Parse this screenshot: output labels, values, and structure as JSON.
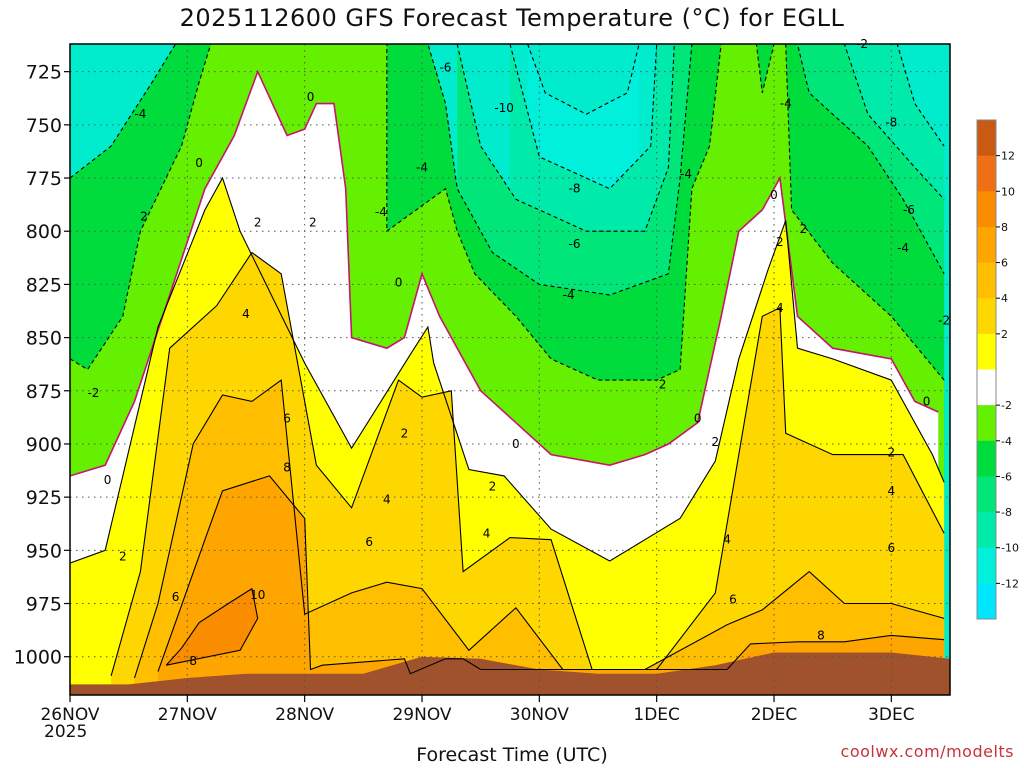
{
  "chart_data": {
    "type": "heatmap",
    "title": "2025112600 GFS Forecast Temperature (°C) for EGLL",
    "xlabel": "Forecast Time (UTC)",
    "credit": "coolwx.com/modelts",
    "x_year": "2025",
    "x_ticks": [
      "26NOV",
      "27NOV",
      "28NOV",
      "29NOV",
      "30NOV",
      "1DEC",
      "2DEC",
      "3DEC"
    ],
    "x_range_days": [
      0,
      7.5
    ],
    "y_ticks": [
      725,
      750,
      775,
      800,
      825,
      850,
      875,
      900,
      925,
      950,
      975,
      1000
    ],
    "y_range_hPa": [
      712,
      1018
    ],
    "y_axis_orientation": "pressure increasing downward",
    "grid": true,
    "colorbar": {
      "position": "right",
      "labels": [
        "12",
        "10",
        "8",
        "6",
        "4",
        "2",
        "-2",
        "-4",
        "-6",
        "-8",
        "-10",
        "-12"
      ],
      "bins": [
        {
          "from": 12,
          "to": 14,
          "color": "#F06E14"
        },
        {
          "from": 10,
          "to": 12,
          "color": "#FA8C00"
        },
        {
          "from": 8,
          "to": 10,
          "color": "#FFA500"
        },
        {
          "from": 6,
          "to": 8,
          "color": "#FFBE00"
        },
        {
          "from": 4,
          "to": 6,
          "color": "#FFD700"
        },
        {
          "from": 2,
          "to": 4,
          "color": "#FFFF00"
        },
        {
          "from": -2,
          "to": 2,
          "color": "#FFFFFF"
        },
        {
          "from": -4,
          "to": -2,
          "color": "#64F000"
        },
        {
          "from": -6,
          "to": -4,
          "color": "#00DC3C"
        },
        {
          "from": -8,
          "to": -6,
          "color": "#00E678"
        },
        {
          "from": -10,
          "to": -8,
          "color": "#00EBAA"
        },
        {
          "from": -12,
          "to": -10,
          "color": "#00F0DC"
        },
        {
          "from": -14,
          "to": -12,
          "color": "#00E6FF"
        }
      ],
      "top_color": "#C85A14"
    },
    "terrain_color": "#A0522D",
    "zero_line_color": "#C8146E",
    "surface_pressure": {
      "x": [
        0,
        0.5,
        1.0,
        1.5,
        2.0,
        2.5,
        3.0,
        3.5,
        4.0,
        4.5,
        5.0,
        5.5,
        6.0,
        6.5,
        7.0,
        7.5
      ],
      "p": [
        1013,
        1013,
        1010,
        1008,
        1008,
        1008,
        1000,
        1001,
        1006,
        1008,
        1008,
        1004,
        998,
        998,
        998,
        1001
      ]
    },
    "isotherms": {
      "10": [
        [
          0.82,
          1004
        ],
        [
          1.45,
          997
        ],
        [
          1.6,
          982
        ],
        [
          1.55,
          968
        ],
        [
          1.35,
          975
        ],
        [
          1.1,
          984
        ],
        [
          0.95,
          996
        ],
        [
          0.82,
          1004
        ]
      ],
      "8": [
        [
          0.75,
          1007
        ],
        [
          1.15,
          945
        ],
        [
          1.3,
          922
        ],
        [
          1.7,
          915
        ],
        [
          2.0,
          935
        ],
        [
          2.05,
          1006
        ],
        [
          2.15,
          1004
        ],
        [
          2.85,
          1001
        ],
        [
          2.9,
          1008
        ],
        [
          3.2,
          1001
        ],
        [
          3.35,
          1001
        ],
        [
          3.5,
          1006
        ],
        [
          5.6,
          1006
        ],
        [
          5.8,
          994
        ],
        [
          6.2,
          993
        ],
        [
          6.6,
          993
        ],
        [
          7.0,
          990
        ],
        [
          7.45,
          992
        ]
      ],
      "6": [
        [
          0.55,
          1010
        ],
        [
          0.75,
          975
        ],
        [
          1.05,
          900
        ],
        [
          1.3,
          877
        ],
        [
          1.55,
          880
        ],
        [
          1.8,
          870
        ],
        [
          2.0,
          980
        ],
        [
          2.4,
          970
        ],
        [
          2.7,
          965
        ],
        [
          3.0,
          968
        ],
        [
          3.4,
          997
        ],
        [
          3.8,
          977
        ],
        [
          4.2,
          1006
        ],
        [
          4.9,
          1006
        ],
        [
          5.6,
          985
        ],
        [
          5.9,
          978
        ],
        [
          6.3,
          960
        ],
        [
          6.6,
          975
        ],
        [
          7.0,
          975
        ],
        [
          7.45,
          982
        ]
      ],
      "4": [
        [
          0.35,
          1009
        ],
        [
          0.6,
          960
        ],
        [
          0.85,
          855
        ],
        [
          1.25,
          835
        ],
        [
          1.55,
          810
        ],
        [
          1.8,
          820
        ],
        [
          2.1,
          910
        ],
        [
          2.4,
          930
        ],
        [
          2.8,
          870
        ],
        [
          3.0,
          878
        ],
        [
          3.25,
          875
        ],
        [
          3.35,
          960
        ],
        [
          3.75,
          944
        ],
        [
          4.1,
          945
        ],
        [
          4.45,
          1006
        ],
        [
          5.0,
          1006
        ],
        [
          5.5,
          970
        ],
        [
          5.9,
          840
        ],
        [
          6.05,
          836
        ],
        [
          6.1,
          895
        ],
        [
          6.5,
          905
        ],
        [
          7.1,
          905
        ],
        [
          7.45,
          942
        ]
      ],
      "2": [
        [
          0.0,
          956
        ],
        [
          0.3,
          950
        ],
        [
          0.75,
          845
        ],
        [
          1.15,
          790
        ],
        [
          1.3,
          775
        ],
        [
          1.45,
          800
        ],
        [
          2.0,
          862
        ],
        [
          2.4,
          902
        ],
        [
          2.9,
          858
        ],
        [
          3.05,
          845
        ],
        [
          3.1,
          862
        ],
        [
          3.4,
          912
        ],
        [
          3.7,
          915
        ],
        [
          4.1,
          940
        ],
        [
          4.6,
          955
        ],
        [
          4.9,
          945
        ],
        [
          5.2,
          935
        ],
        [
          5.5,
          908
        ],
        [
          5.7,
          860
        ],
        [
          5.95,
          818
        ],
        [
          6.1,
          795
        ],
        [
          6.2,
          855
        ],
        [
          6.5,
          860
        ],
        [
          7.0,
          870
        ],
        [
          7.35,
          905
        ],
        [
          7.45,
          918
        ]
      ],
      "0": [
        [
          0.0,
          915
        ],
        [
          0.3,
          910
        ],
        [
          0.55,
          880
        ],
        [
          0.85,
          830
        ],
        [
          1.15,
          780
        ],
        [
          1.4,
          755
        ],
        [
          1.6,
          725
        ],
        [
          1.85,
          755
        ],
        [
          2.0,
          752
        ],
        [
          2.1,
          740
        ],
        [
          2.25,
          740
        ],
        [
          2.35,
          780
        ],
        [
          2.4,
          850
        ],
        [
          2.7,
          855
        ],
        [
          2.85,
          850
        ],
        [
          3.0,
          820
        ],
        [
          3.15,
          840
        ],
        [
          3.5,
          875
        ],
        [
          3.8,
          890
        ],
        [
          4.1,
          905
        ],
        [
          4.6,
          910
        ],
        [
          4.9,
          905
        ],
        [
          5.1,
          900
        ],
        [
          5.35,
          890
        ],
        [
          5.55,
          840
        ],
        [
          5.7,
          800
        ],
        [
          5.9,
          790
        ],
        [
          6.05,
          775
        ],
        [
          6.2,
          840
        ],
        [
          6.5,
          855
        ],
        [
          7.0,
          860
        ],
        [
          7.2,
          880
        ],
        [
          7.4,
          885
        ]
      ],
      "-2": [
        [
          0.0,
          860
        ],
        [
          0.15,
          865
        ],
        [
          0.45,
          840
        ],
        [
          0.6,
          800
        ],
        [
          0.95,
          760
        ],
        [
          1.1,
          730
        ],
        [
          1.2,
          712
        ],
        [
          2.7,
          712
        ],
        [
          2.7,
          800
        ],
        [
          3.2,
          780
        ],
        [
          3.3,
          800
        ],
        [
          3.45,
          820
        ],
        [
          3.8,
          840
        ],
        [
          4.1,
          860
        ],
        [
          4.5,
          870
        ],
        [
          5.0,
          870
        ],
        [
          5.2,
          865
        ],
        [
          5.3,
          780
        ],
        [
          5.45,
          760
        ],
        [
          5.55,
          712
        ],
        [
          5.85,
          712
        ],
        [
          5.9,
          735
        ],
        [
          6.0,
          712
        ],
        [
          6.1,
          712
        ],
        [
          6.15,
          790
        ],
        [
          6.5,
          815
        ],
        [
          7.0,
          840
        ],
        [
          7.45,
          870
        ]
      ],
      "-4": [
        [
          0.0,
          775
        ],
        [
          0.35,
          760
        ],
        [
          0.7,
          730
        ],
        [
          0.9,
          712
        ],
        [
          3.05,
          712
        ],
        [
          3.2,
          740
        ],
        [
          3.3,
          780
        ],
        [
          3.6,
          810
        ],
        [
          4.0,
          825
        ],
        [
          4.6,
          830
        ],
        [
          5.1,
          820
        ],
        [
          5.2,
          775
        ],
        [
          5.3,
          712
        ],
        [
          6.2,
          712
        ],
        [
          6.3,
          735
        ],
        [
          6.8,
          760
        ],
        [
          7.1,
          785
        ],
        [
          7.45,
          820
        ]
      ],
      "-6": [
        [
          3.3,
          712
        ],
        [
          3.5,
          760
        ],
        [
          3.8,
          785
        ],
        [
          4.4,
          800
        ],
        [
          4.9,
          800
        ],
        [
          5.1,
          770
        ],
        [
          5.15,
          712
        ],
        [
          6.6,
          712
        ],
        [
          6.8,
          745
        ],
        [
          7.2,
          770
        ],
        [
          7.45,
          785
        ]
      ],
      "-8": [
        [
          3.75,
          712
        ],
        [
          4.0,
          765
        ],
        [
          4.6,
          780
        ],
        [
          4.95,
          760
        ],
        [
          5.0,
          712
        ],
        [
          7.05,
          712
        ],
        [
          7.2,
          740
        ],
        [
          7.45,
          760
        ]
      ],
      "-10": [
        [
          3.9,
          712
        ],
        [
          4.05,
          735
        ],
        [
          4.4,
          745
        ],
        [
          4.75,
          735
        ],
        [
          4.85,
          712
        ]
      ]
    },
    "contour_labels": [
      {
        "text": "0",
        "x": 1.1,
        "p": 768
      },
      {
        "text": "0",
        "x": 2.05,
        "p": 737
      },
      {
        "text": "0",
        "x": 0.32,
        "p": 917
      },
      {
        "text": "0",
        "x": 2.8,
        "p": 824
      },
      {
        "text": "0",
        "x": 3.8,
        "p": 900
      },
      {
        "text": "0",
        "x": 5.35,
        "p": 888
      },
      {
        "text": "0",
        "x": 6.0,
        "p": 783
      },
      {
        "text": "0",
        "x": 7.3,
        "p": 880
      },
      {
        "text": "2",
        "x": 0.63,
        "p": 793
      },
      {
        "text": "2",
        "x": 1.6,
        "p": 796
      },
      {
        "text": "2",
        "x": 2.07,
        "p": 796
      },
      {
        "text": "2",
        "x": 0.45,
        "p": 953
      },
      {
        "text": "2",
        "x": 2.85,
        "p": 895
      },
      {
        "text": "2",
        "x": 3.6,
        "p": 920
      },
      {
        "text": "2",
        "x": 5.05,
        "p": 872
      },
      {
        "text": "2",
        "x": 5.5,
        "p": 899
      },
      {
        "text": "2",
        "x": 6.05,
        "p": 805
      },
      {
        "text": "2",
        "x": 6.25,
        "p": 799
      },
      {
        "text": "2",
        "x": 7.0,
        "p": 904
      },
      {
        "text": "-2",
        "x": 0.2,
        "p": 876
      },
      {
        "text": "-2",
        "x": 6.75,
        "p": 712
      },
      {
        "text": "-2",
        "x": 7.45,
        "p": 842
      },
      {
        "text": "4",
        "x": 1.5,
        "p": 839
      },
      {
        "text": "4",
        "x": 2.7,
        "p": 926
      },
      {
        "text": "4",
        "x": 3.55,
        "p": 942
      },
      {
        "text": "4",
        "x": 5.6,
        "p": 945
      },
      {
        "text": "4",
        "x": 6.05,
        "p": 836
      },
      {
        "text": "4",
        "x": 7.0,
        "p": 922
      },
      {
        "text": "-4",
        "x": 0.6,
        "p": 745
      },
      {
        "text": "-4",
        "x": 2.65,
        "p": 791
      },
      {
        "text": "-4",
        "x": 3.0,
        "p": 770
      },
      {
        "text": "-4",
        "x": 4.25,
        "p": 830
      },
      {
        "text": "-4",
        "x": 5.25,
        "p": 773
      },
      {
        "text": "-4",
        "x": 6.1,
        "p": 740
      },
      {
        "text": "-4",
        "x": 7.1,
        "p": 808
      },
      {
        "text": "6",
        "x": 1.85,
        "p": 888
      },
      {
        "text": "6",
        "x": 2.55,
        "p": 946
      },
      {
        "text": "6",
        "x": 0.9,
        "p": 972
      },
      {
        "text": "6",
        "x": 5.65,
        "p": 973
      },
      {
        "text": "6",
        "x": 7.0,
        "p": 949
      },
      {
        "text": "-6",
        "x": 3.2,
        "p": 723
      },
      {
        "text": "-6",
        "x": 4.3,
        "p": 806
      },
      {
        "text": "-6",
        "x": 7.15,
        "p": 790
      },
      {
        "text": "8",
        "x": 1.85,
        "p": 911
      },
      {
        "text": "8",
        "x": 1.05,
        "p": 1002
      },
      {
        "text": "8",
        "x": 6.4,
        "p": 990
      },
      {
        "text": "-8",
        "x": 4.3,
        "p": 780
      },
      {
        "text": "-8",
        "x": 7.0,
        "p": 749
      },
      {
        "text": "10",
        "x": 1.6,
        "p": 971
      },
      {
        "text": "-10",
        "x": 3.7,
        "p": 742
      }
    ]
  }
}
